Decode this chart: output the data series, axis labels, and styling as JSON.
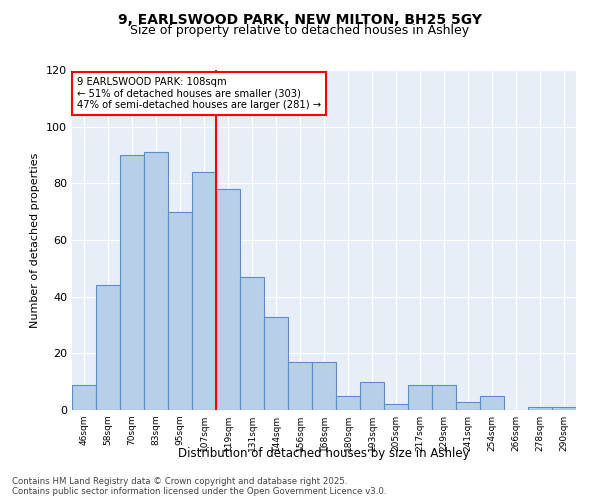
{
  "title1": "9, EARLSWOOD PARK, NEW MILTON, BH25 5GY",
  "title2": "Size of property relative to detached houses in Ashley",
  "xlabel": "Distribution of detached houses by size in Ashley",
  "ylabel": "Number of detached properties",
  "categories": [
    "46sqm",
    "58sqm",
    "70sqm",
    "83sqm",
    "95sqm",
    "107sqm",
    "119sqm",
    "131sqm",
    "144sqm",
    "156sqm",
    "168sqm",
    "180sqm",
    "193sqm",
    "205sqm",
    "217sqm",
    "229sqm",
    "241sqm",
    "254sqm",
    "266sqm",
    "278sqm",
    "290sqm"
  ],
  "values": [
    9,
    44,
    90,
    91,
    70,
    84,
    78,
    47,
    33,
    17,
    17,
    5,
    10,
    2,
    9,
    9,
    3,
    5,
    0,
    1,
    1
  ],
  "bar_color": "#b8cfe8",
  "bar_edge_color": "#5b8dc8",
  "bg_color": "#e8eef8",
  "vline_x_index": 5,
  "vline_color": "red",
  "annotation_line1": "9 EARLSWOOD PARK: 108sqm",
  "annotation_line2": "← 51% of detached houses are smaller (303)",
  "annotation_line3": "47% of semi-detached houses are larger (281) →",
  "ylim": [
    0,
    120
  ],
  "yticks": [
    0,
    20,
    40,
    60,
    80,
    100,
    120
  ],
  "footer1": "Contains HM Land Registry data © Crown copyright and database right 2025.",
  "footer2": "Contains public sector information licensed under the Open Government Licence v3.0."
}
